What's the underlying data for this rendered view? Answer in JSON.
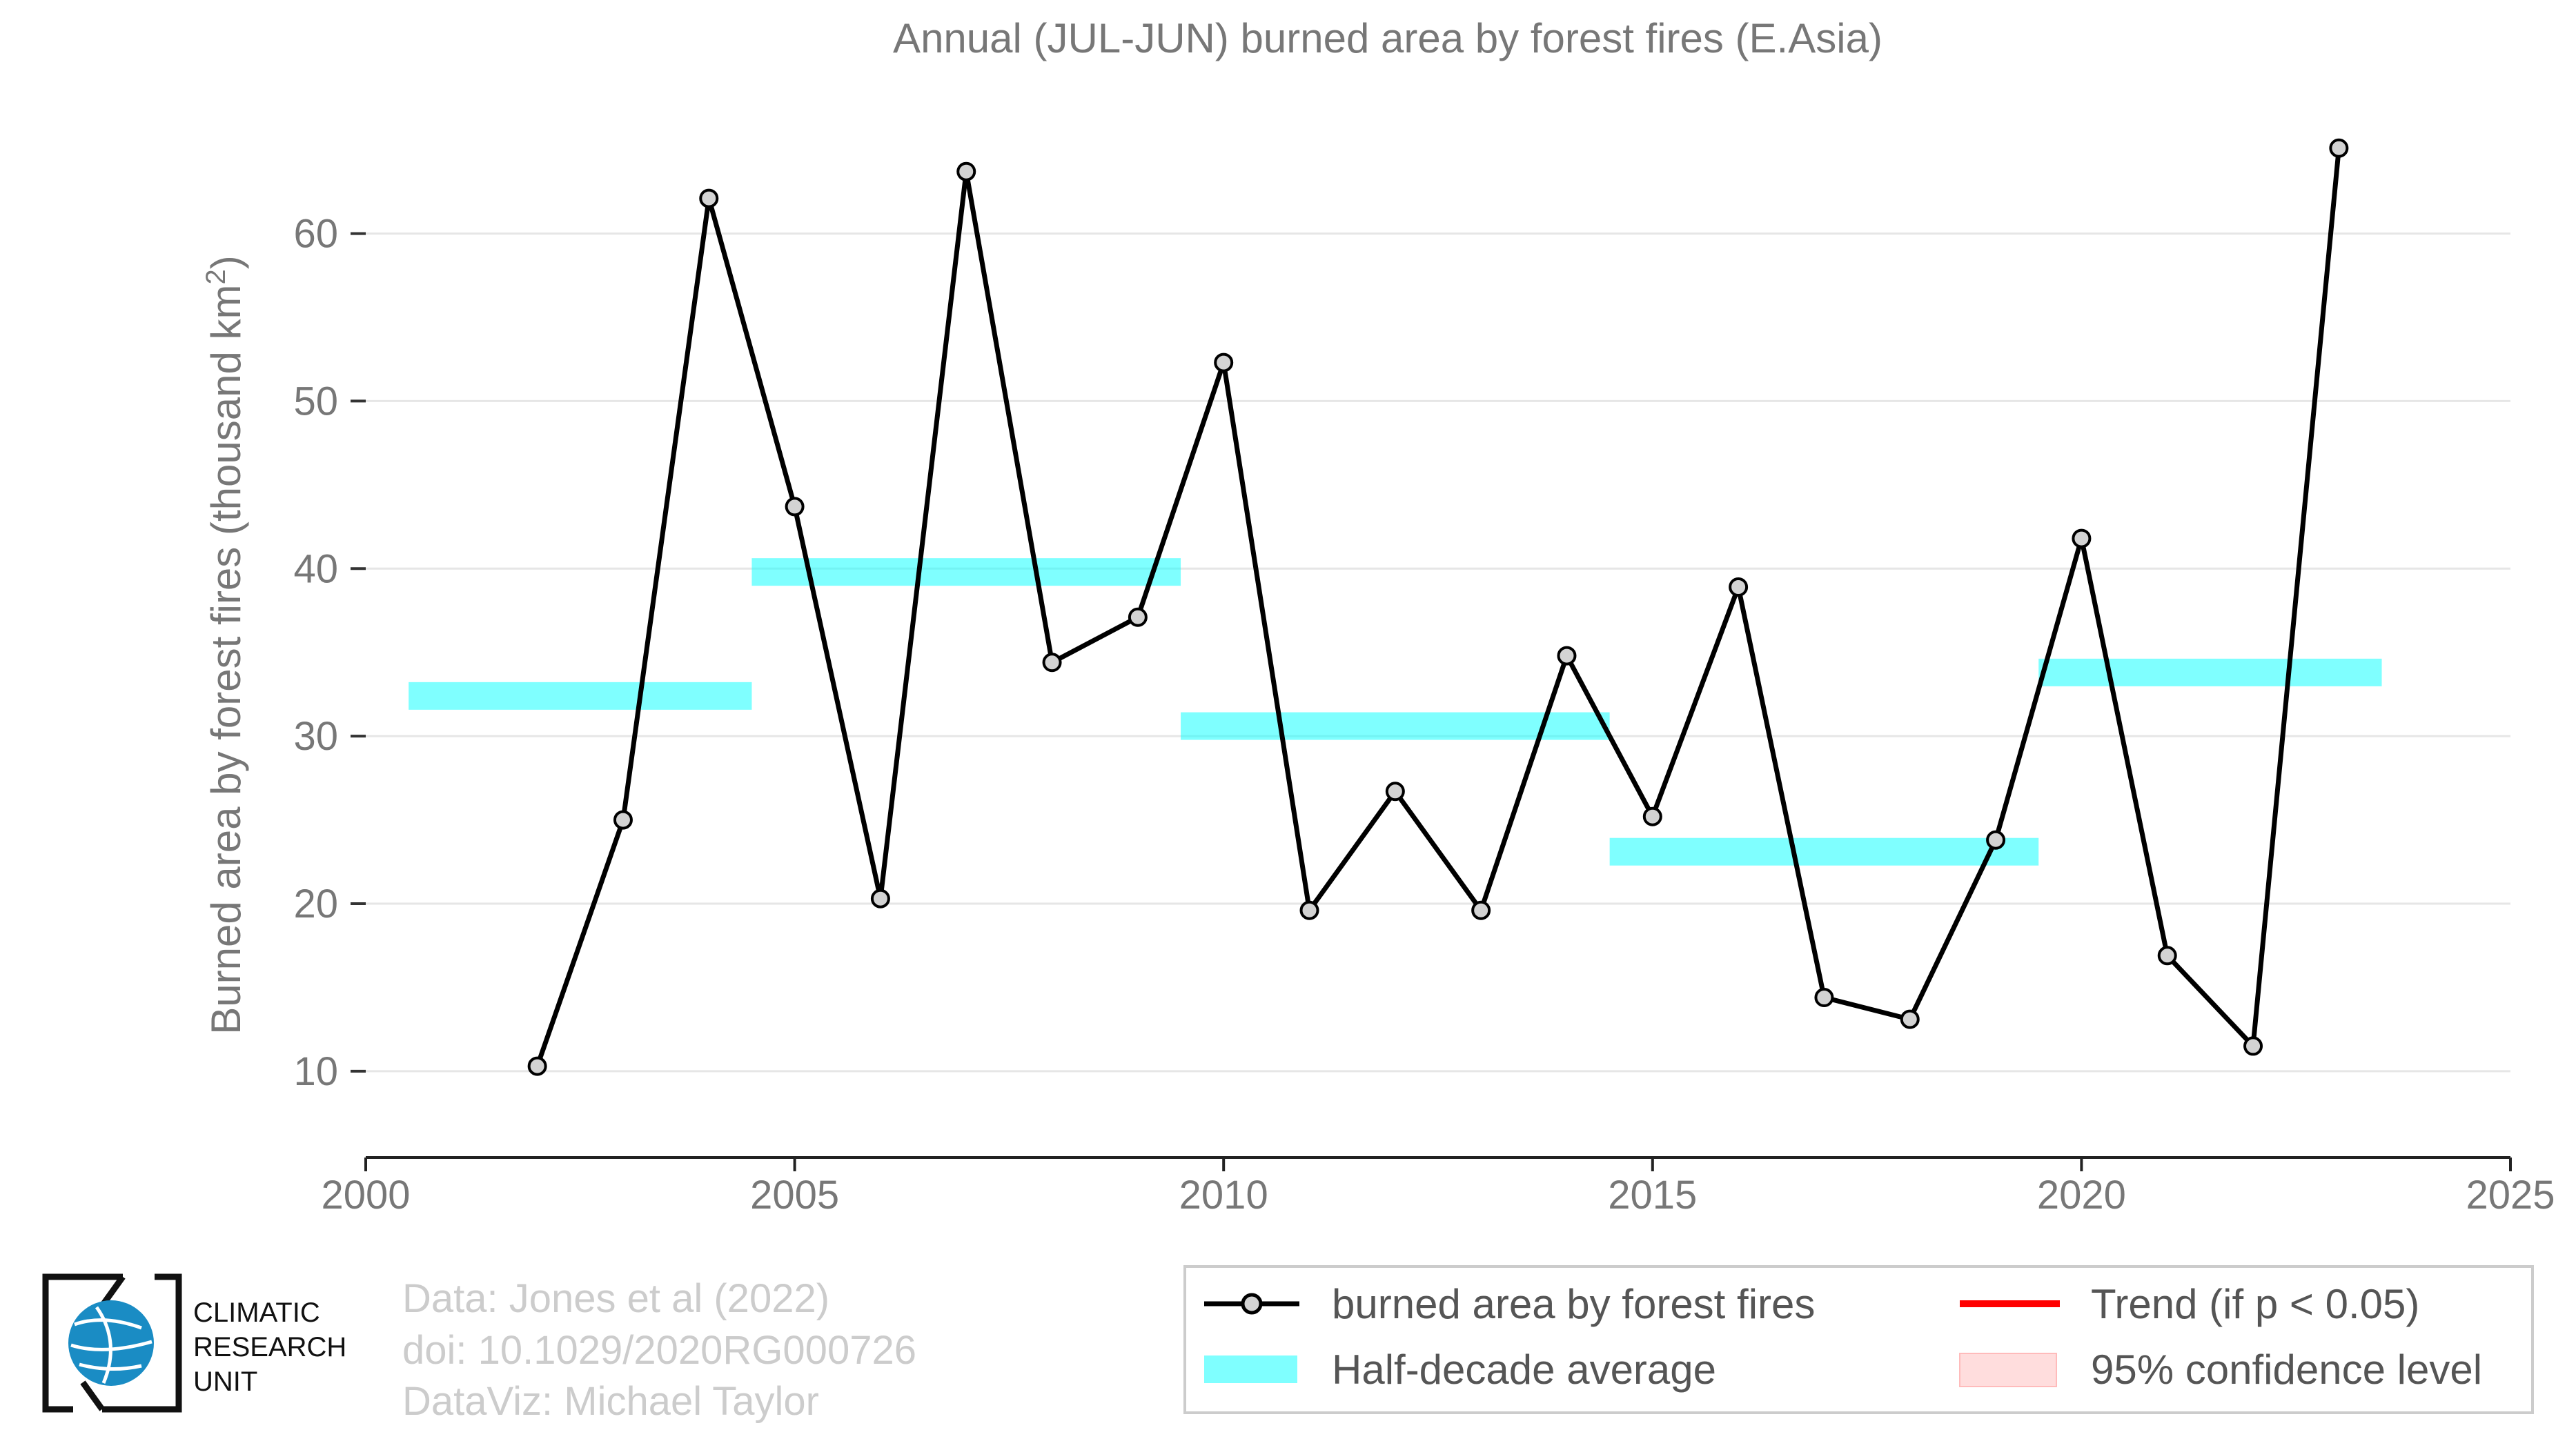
{
  "chart_data": {
    "type": "line",
    "title": "Annual (JUL-JUN) burned area by forest fires (E.Asia)",
    "xlabel": "",
    "ylabel_main": "Burned area by forest fires (thousand km",
    "ylabel_sup": "2",
    "ylabel_close": ")",
    "xlim": [
      2000,
      2025
    ],
    "ylim": [
      6,
      69
    ],
    "xticks": [
      2000,
      2005,
      2010,
      2015,
      2020,
      2025
    ],
    "yticks": [
      10,
      20,
      30,
      40,
      50,
      60
    ],
    "grid": "horizontal",
    "legend_position": "bottom-right",
    "series": [
      {
        "name": "burned area by forest fires",
        "color": "#000000",
        "x": [
          2002,
          2003,
          2004,
          2005,
          2006,
          2007,
          2008,
          2009,
          2010,
          2011,
          2012,
          2013,
          2014,
          2015,
          2016,
          2017,
          2018,
          2019,
          2020,
          2021,
          2022,
          2023
        ],
        "y": [
          10.3,
          25.0,
          62.1,
          43.7,
          20.3,
          63.7,
          34.4,
          37.1,
          52.3,
          19.6,
          26.7,
          19.6,
          34.8,
          25.2,
          38.9,
          14.4,
          13.1,
          23.8,
          41.8,
          16.9,
          11.5,
          65.1
        ]
      }
    ],
    "half_decade_averages": {
      "name": "Half-decade average",
      "color": "#00ffff",
      "segments": [
        {
          "x_start": 2000.5,
          "x_end": 2004.5,
          "value": 32.4
        },
        {
          "x_start": 2004.5,
          "x_end": 2009.5,
          "value": 39.8
        },
        {
          "x_start": 2009.5,
          "x_end": 2014.5,
          "value": 30.6
        },
        {
          "x_start": 2014.5,
          "x_end": 2019.5,
          "value": 23.1
        },
        {
          "x_start": 2019.5,
          "x_end": 2023.5,
          "value": 33.8
        }
      ]
    },
    "legend": [
      {
        "label": "burned area by forest fires",
        "marker": "line-circle",
        "color": "#000000"
      },
      {
        "label": "Trend (if p < 0.05)",
        "marker": "line",
        "color": "#ff0000"
      },
      {
        "label": "Half-decade average",
        "marker": "band",
        "color": "#00ffff"
      },
      {
        "label": "95% confidence level",
        "marker": "band",
        "color": "#ffdddd"
      }
    ]
  },
  "credits": {
    "line1": "Data: Jones et al (2022)",
    "line2": "doi: 10.1029/2020RG000726",
    "line3": "DataViz: Michael Taylor"
  },
  "logo": {
    "line1": "CLIMATIC",
    "line2": "RESEARCH",
    "line3": "UNIT"
  }
}
